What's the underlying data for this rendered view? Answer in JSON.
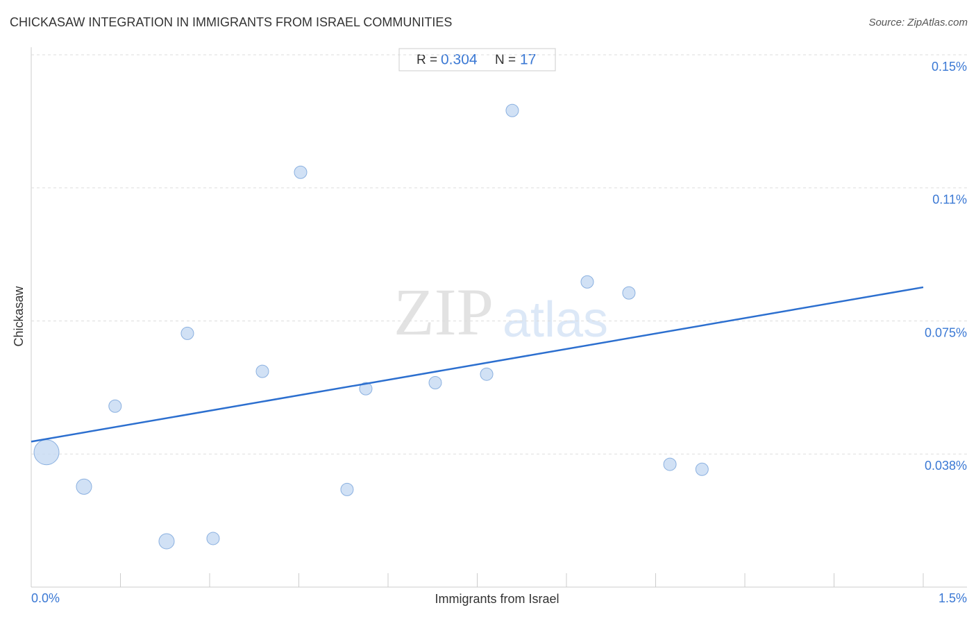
{
  "chart_data": {
    "type": "scatter",
    "title": "CHICKASAW INTEGRATION IN IMMIGRANTS FROM ISRAEL COMMUNITIES",
    "source": "Source: ZipAtlas.com",
    "x_label": "Immigrants from Israel",
    "y_label": "Chickasaw",
    "watermark": [
      "ZIP",
      "atlas"
    ],
    "stats": {
      "r_label": "R =",
      "r": 0.304,
      "n_label": "N =",
      "n": 17
    },
    "xlim": [
      0,
      1.5
    ],
    "ylim": [
      0,
      0.15
    ],
    "xticks": [
      {
        "value": 0,
        "label": "0.0%"
      },
      {
        "value": 0.15,
        "label": null
      },
      {
        "value": 0.3,
        "label": null
      },
      {
        "value": 0.45,
        "label": null
      },
      {
        "value": 0.6,
        "label": null
      },
      {
        "value": 0.75,
        "label": null
      },
      {
        "value": 0.9,
        "label": null
      },
      {
        "value": 1.05,
        "label": null
      },
      {
        "value": 1.2,
        "label": null
      },
      {
        "value": 1.35,
        "label": null
      },
      {
        "value": 1.5,
        "label": "1.5%"
      }
    ],
    "yticks": [
      {
        "value": 0.0375,
        "label": "0.038%"
      },
      {
        "value": 0.075,
        "label": "0.075%"
      },
      {
        "value": 0.1125,
        "label": "0.11%"
      },
      {
        "value": 0.15,
        "label": "0.15%"
      }
    ],
    "grid": true,
    "color": "#c5d9f3",
    "x": [
      0.0257,
      0.0887,
      0.141,
      0.2276,
      0.2626,
      0.3058,
      0.3887,
      0.4529,
      0.5311,
      0.5626,
      0.6794,
      0.7658,
      0.8089,
      0.935,
      1.005,
      1.074,
      1.128
    ],
    "y": [
      0.038,
      0.0283,
      0.051,
      0.0129,
      0.0715,
      0.0137,
      0.0608,
      0.1169,
      0.0275,
      0.0559,
      0.0576,
      0.06,
      0.1343,
      0.086,
      0.0829,
      0.0346,
      0.0332
    ],
    "sizes": [
      4,
      1.5,
      1,
      1.5,
      1,
      1,
      1,
      1,
      1,
      1,
      1,
      1,
      1,
      1,
      1,
      1,
      1
    ],
    "trend": {
      "color": "#2c6fcf",
      "x": [
        0,
        1.5
      ],
      "y": [
        0.041,
        0.0845
      ]
    }
  }
}
